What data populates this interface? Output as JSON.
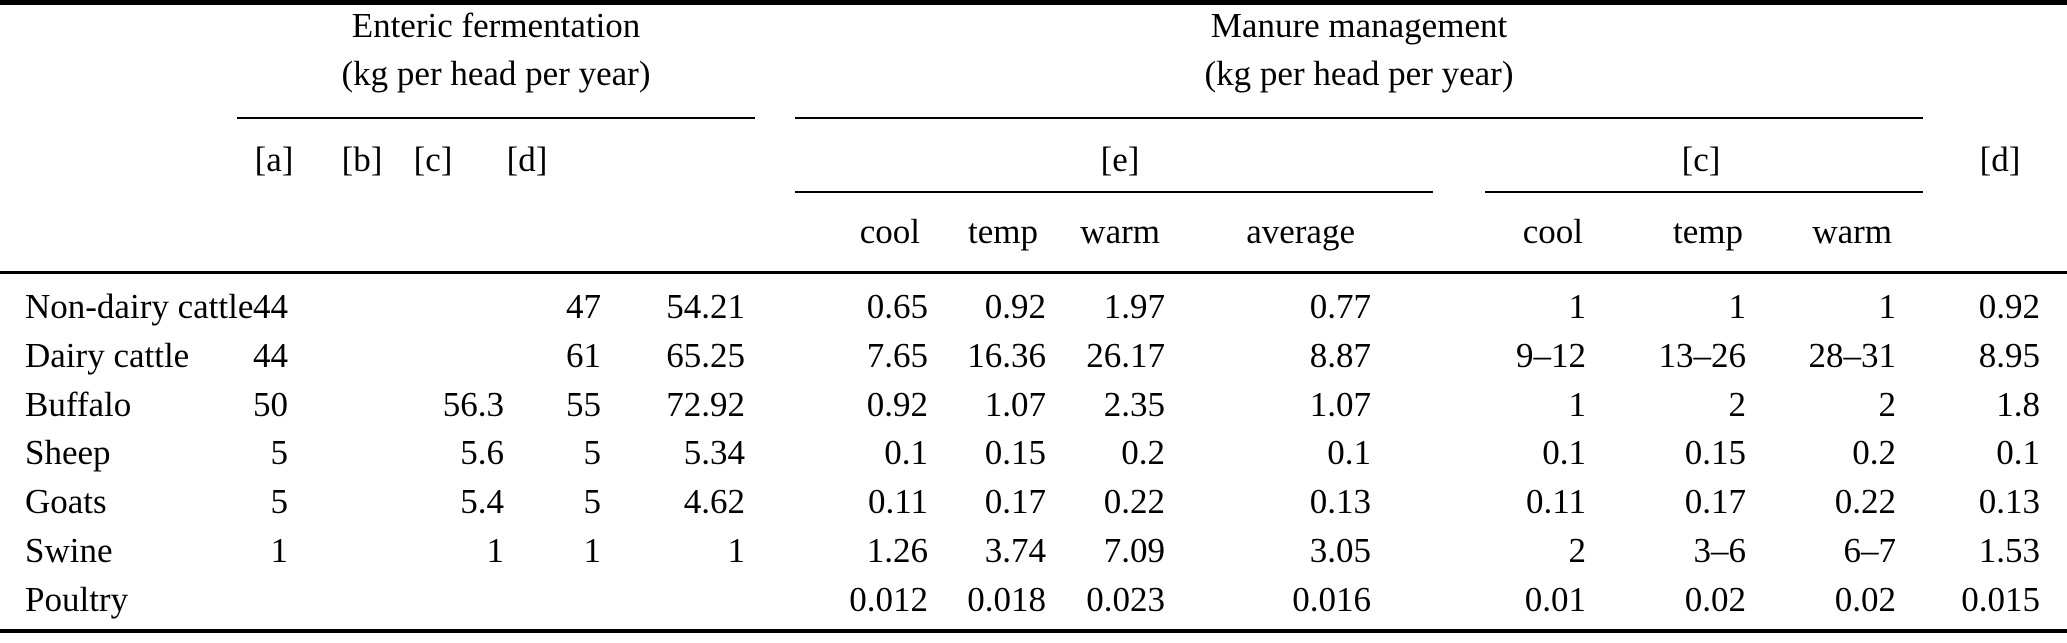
{
  "table": {
    "col_groups": {
      "enteric": {
        "title": "Enteric fermentation",
        "subtitle": "(kg per head per year)",
        "labels": [
          "[a]",
          "[b]",
          "[c]",
          "[d]"
        ]
      },
      "manure": {
        "title": "Manure management",
        "subtitle": "(kg per head per year)",
        "e_label": "[e]",
        "c_label": "[c]",
        "d_label": "[d]",
        "e_subcols": [
          "cool",
          "temp",
          "warm",
          "average"
        ],
        "c_subcols": [
          "cool",
          "temp",
          "warm"
        ]
      }
    },
    "column_keys": [
      "a",
      "b",
      "c",
      "d",
      "e-cool",
      "e-temp",
      "e-warm",
      "e-average",
      "c-cool",
      "c-temp",
      "c-warm",
      "d2"
    ],
    "rows": [
      {
        "label": "Non-dairy cattle",
        "values": [
          "44",
          "",
          "47",
          "54.21",
          "0.65",
          "0.92",
          "1.97",
          "0.77",
          "1",
          "1",
          "1",
          "0.92"
        ]
      },
      {
        "label": "Dairy cattle",
        "values": [
          "44",
          "",
          "61",
          "65.25",
          "7.65",
          "16.36",
          "26.17",
          "8.87",
          "9–12",
          "13–26",
          "28–31",
          "8.95"
        ]
      },
      {
        "label": "Buffalo",
        "values": [
          "50",
          "56.3",
          "55",
          "72.92",
          "0.92",
          "1.07",
          "2.35",
          "1.07",
          "1",
          "2",
          "2",
          "1.8"
        ]
      },
      {
        "label": "Sheep",
        "values": [
          "5",
          "5.6",
          "5",
          "5.34",
          "0.1",
          "0.15",
          "0.2",
          "0.1",
          "0.1",
          "0.15",
          "0.2",
          "0.1"
        ]
      },
      {
        "label": "Goats",
        "values": [
          "5",
          "5.4",
          "5",
          "4.62",
          "0.11",
          "0.17",
          "0.22",
          "0.13",
          "0.11",
          "0.17",
          "0.22",
          "0.13"
        ]
      },
      {
        "label": "Swine",
        "values": [
          "1",
          "1",
          "1",
          "1",
          "1.26",
          "3.74",
          "7.09",
          "3.05",
          "2",
          "3–6",
          "6–7",
          "1.53"
        ]
      },
      {
        "label": "Poultry",
        "values": [
          "",
          "",
          "",
          "",
          "0.012",
          "0.018",
          "0.023",
          "0.016",
          "0.01",
          "0.02",
          "0.02",
          "0.015"
        ]
      }
    ]
  },
  "colors": {
    "background": "#ffffff",
    "text": "#000000",
    "rule": "#000000"
  }
}
